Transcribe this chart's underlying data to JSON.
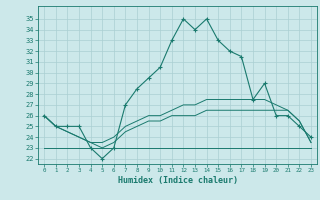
{
  "x": [
    0,
    1,
    2,
    3,
    4,
    5,
    6,
    7,
    8,
    9,
    10,
    11,
    12,
    13,
    14,
    15,
    16,
    17,
    18,
    19,
    20,
    21,
    22,
    23
  ],
  "main_line": [
    26,
    25,
    25,
    25,
    23,
    22,
    23,
    27,
    28.5,
    29.5,
    30.5,
    33,
    35,
    34,
    35,
    33,
    32,
    31.5,
    27.5,
    29,
    26,
    26,
    25,
    24
  ],
  "min_line": [
    26,
    25,
    24.5,
    24,
    23.5,
    23,
    23.5,
    24.5,
    25,
    25.5,
    25.5,
    26,
    26,
    26,
    26.5,
    26.5,
    26.5,
    26.5,
    26.5,
    26.5,
    26.5,
    26.5,
    25.5,
    23.5
  ],
  "max_line": [
    26,
    25,
    24.5,
    24,
    23.5,
    23.5,
    24,
    25,
    25.5,
    26,
    26,
    26.5,
    27,
    27,
    27.5,
    27.5,
    27.5,
    27.5,
    27.5,
    27.5,
    27,
    26.5,
    25.5,
    23.5
  ],
  "flat_line": [
    23,
    23,
    23,
    23,
    23,
    23,
    23,
    23,
    23,
    23,
    23,
    23,
    23,
    23,
    23,
    23,
    23,
    23,
    23,
    23,
    23,
    23,
    23,
    23
  ],
  "line_color": "#1a7a6e",
  "bg_color": "#cce8ea",
  "grid_color": "#aacfd2",
  "xlabel": "Humidex (Indice chaleur)",
  "ylim": [
    21.5,
    36.2
  ],
  "xlim": [
    -0.5,
    23.5
  ],
  "yticks": [
    22,
    23,
    24,
    25,
    26,
    27,
    28,
    29,
    30,
    31,
    32,
    33,
    34,
    35
  ],
  "xticks": [
    0,
    1,
    2,
    3,
    4,
    5,
    6,
    7,
    8,
    9,
    10,
    11,
    12,
    13,
    14,
    15,
    16,
    17,
    18,
    19,
    20,
    21,
    22,
    23
  ]
}
